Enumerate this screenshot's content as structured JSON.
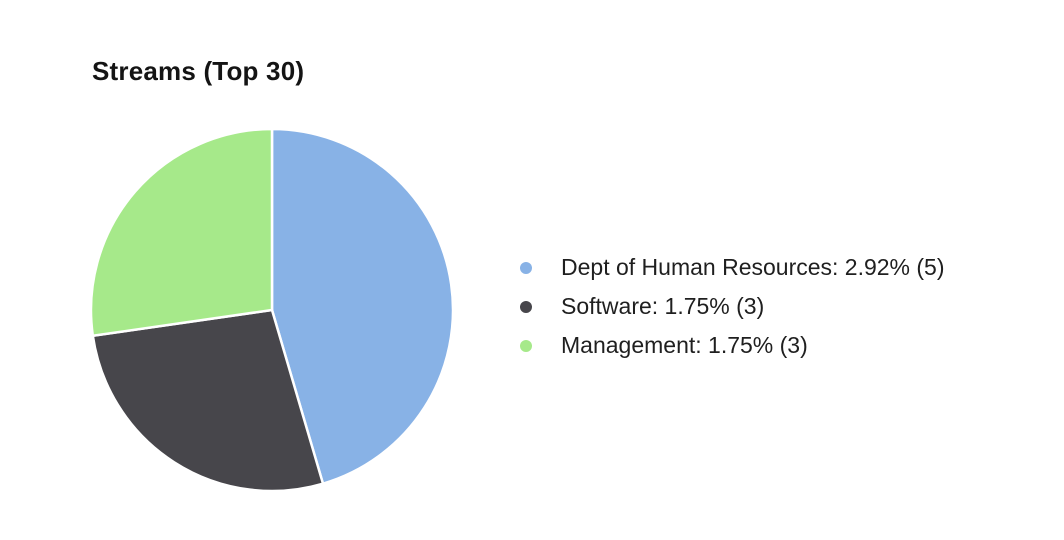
{
  "chart_data": {
    "type": "pie",
    "title": "Streams (Top 30)",
    "slices": [
      {
        "name": "Dept of Human Resources",
        "percent": 2.92,
        "count": 5,
        "color": "#88b2e6",
        "legend_label": "Dept of Human Resources: 2.92% (5)"
      },
      {
        "name": "Software",
        "percent": 1.75,
        "count": 3,
        "color": "#47464b",
        "legend_label": "Software: 1.75% (3)"
      },
      {
        "name": "Management",
        "percent": 1.75,
        "count": 3,
        "color": "#a6e98a",
        "legend_label": "Management: 1.75% (3)"
      }
    ],
    "start_angle": "12 o'clock",
    "direction": "clockwise",
    "legend_position": "right"
  }
}
